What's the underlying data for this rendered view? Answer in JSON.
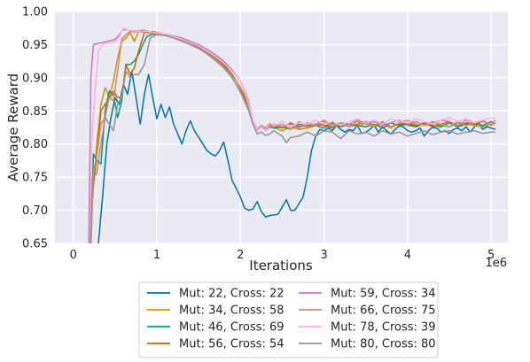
{
  "chart_data": {
    "type": "line",
    "xlabel": "Iterations",
    "ylabel": "Average Reward",
    "x_offset_label": "1e6",
    "xlim": [
      -0.22,
      5.2
    ],
    "ylim": [
      0.65,
      1.0
    ],
    "x_ticks": [
      0,
      1,
      2,
      3,
      4,
      5
    ],
    "y_ticks": [
      0.65,
      0.7,
      0.75,
      0.8,
      0.85,
      0.9,
      0.95,
      1.0
    ],
    "x_tick_labels": [
      "0",
      "1",
      "2",
      "3",
      "4",
      "5"
    ],
    "y_tick_labels": [
      "0.65",
      "0.70",
      "0.75",
      "0.80",
      "0.85",
      "0.90",
      "0.95",
      "1.00"
    ],
    "grid": true,
    "legend_position": "bottom-outside",
    "series": [
      {
        "name": "Mut: 22, Cross: 22",
        "color": "#0173b2",
        "x": [
          0.27,
          0.3,
          0.35,
          0.4,
          0.45,
          0.5,
          0.55,
          0.6,
          0.65,
          0.7,
          0.75,
          0.8,
          0.85,
          0.9,
          0.95,
          1.0,
          1.05,
          1.1,
          1.15,
          1.2,
          1.25,
          1.3,
          1.35,
          1.4,
          1.45,
          1.5,
          1.55,
          1.6,
          1.65,
          1.7,
          1.75,
          1.8,
          1.85,
          1.9,
          1.95,
          2.0,
          2.05,
          2.1,
          2.15,
          2.2,
          2.25,
          2.3,
          2.35,
          2.4,
          2.45,
          2.5,
          2.55,
          2.6,
          2.65,
          2.7,
          2.75,
          2.8,
          2.85,
          2.9,
          2.95,
          3.0,
          3.05,
          3.1,
          3.15,
          3.2,
          3.25,
          3.3,
          3.35,
          3.4,
          3.45,
          3.5,
          3.55,
          3.6,
          3.65,
          3.7,
          3.75,
          3.8,
          3.85,
          3.9,
          3.95,
          4.0,
          4.05,
          4.1,
          4.15,
          4.2,
          4.25,
          4.3,
          4.35,
          4.4,
          4.45,
          4.5,
          4.55,
          4.6,
          4.65,
          4.7,
          4.75,
          4.8,
          4.85,
          4.9,
          4.95,
          5.0,
          5.05
        ],
        "values": [
          0.6,
          0.65,
          0.72,
          0.8,
          0.84,
          0.87,
          0.86,
          0.89,
          0.875,
          0.91,
          0.87,
          0.83,
          0.875,
          0.905,
          0.87,
          0.838,
          0.86,
          0.84,
          0.856,
          0.83,
          0.815,
          0.8,
          0.82,
          0.835,
          0.82,
          0.81,
          0.8,
          0.79,
          0.785,
          0.782,
          0.79,
          0.803,
          0.775,
          0.745,
          0.733,
          0.72,
          0.703,
          0.7,
          0.702,
          0.713,
          0.698,
          0.69,
          0.692,
          0.693,
          0.694,
          0.705,
          0.716,
          0.7,
          0.7,
          0.71,
          0.72,
          0.75,
          0.79,
          0.812,
          0.822,
          0.82,
          0.824,
          0.82,
          0.828,
          0.822,
          0.818,
          0.822,
          0.82,
          0.828,
          0.816,
          0.818,
          0.822,
          0.828,
          0.818,
          0.826,
          0.82,
          0.815,
          0.822,
          0.827,
          0.826,
          0.82,
          0.818,
          0.82,
          0.824,
          0.812,
          0.82,
          0.825,
          0.824,
          0.818,
          0.82,
          0.816,
          0.822,
          0.824,
          0.82,
          0.826,
          0.818,
          0.826,
          0.832,
          0.822,
          0.826,
          0.824,
          0.822
        ]
      },
      {
        "name": "Mut: 34, Cross: 58",
        "color": "#de8f05",
        "x": [
          0.18,
          0.22,
          0.28,
          0.33,
          0.38,
          0.43,
          0.48,
          0.53,
          0.58,
          0.63,
          0.68,
          0.73,
          0.78,
          0.83,
          0.9,
          1.0,
          1.1,
          1.2,
          1.3,
          1.4,
          1.5,
          1.6,
          1.7,
          1.8,
          1.9,
          2.0,
          2.1,
          2.15,
          2.2,
          2.25,
          2.3,
          2.35,
          2.4,
          2.5,
          2.6,
          2.7,
          2.8,
          2.9,
          3.0,
          3.1,
          3.2,
          3.3,
          3.4,
          3.5,
          3.6,
          3.7,
          3.8,
          3.9,
          4.0,
          4.1,
          4.2,
          4.3,
          4.4,
          4.5,
          4.6,
          4.7,
          4.8,
          4.9,
          5.0,
          5.05
        ],
        "values": [
          0.6,
          0.7,
          0.8,
          0.86,
          0.885,
          0.87,
          0.895,
          0.93,
          0.955,
          0.96,
          0.968,
          0.955,
          0.97,
          0.972,
          0.97,
          0.968,
          0.966,
          0.963,
          0.958,
          0.953,
          0.947,
          0.94,
          0.93,
          0.92,
          0.905,
          0.885,
          0.855,
          0.83,
          0.82,
          0.826,
          0.823,
          0.828,
          0.825,
          0.82,
          0.826,
          0.822,
          0.824,
          0.828,
          0.83,
          0.826,
          0.828,
          0.83,
          0.826,
          0.832,
          0.826,
          0.83,
          0.824,
          0.832,
          0.828,
          0.826,
          0.83,
          0.832,
          0.828,
          0.826,
          0.832,
          0.83,
          0.828,
          0.826,
          0.83,
          0.832
        ]
      },
      {
        "name": "Mut: 46, Cross: 69",
        "color": "#029e73",
        "x": [
          0.2,
          0.24,
          0.28,
          0.33,
          0.38,
          0.43,
          0.48,
          0.53,
          0.58,
          0.63,
          0.68,
          0.73,
          0.78,
          0.83,
          0.88,
          0.93,
          0.98,
          1.05,
          1.1,
          1.2,
          1.3,
          1.4,
          1.5,
          1.6,
          1.7,
          1.8,
          1.9,
          2.0,
          2.1,
          2.15,
          2.2,
          2.25,
          2.3,
          2.35,
          2.4,
          2.5,
          2.6,
          2.7,
          2.8,
          2.9,
          3.0,
          3.1,
          3.2,
          3.3,
          3.4,
          3.5,
          3.6,
          3.7,
          3.8,
          3.9,
          4.0,
          4.1,
          4.2,
          4.3,
          4.4,
          4.5,
          4.6,
          4.7,
          4.8,
          4.9,
          5.0,
          5.05
        ],
        "values": [
          0.6,
          0.785,
          0.775,
          0.77,
          0.85,
          0.88,
          0.875,
          0.84,
          0.865,
          0.92,
          0.92,
          0.925,
          0.935,
          0.95,
          0.962,
          0.965,
          0.966,
          0.965,
          0.964,
          0.962,
          0.958,
          0.953,
          0.947,
          0.94,
          0.93,
          0.92,
          0.905,
          0.885,
          0.855,
          0.83,
          0.82,
          0.828,
          0.822,
          0.826,
          0.824,
          0.826,
          0.822,
          0.83,
          0.826,
          0.828,
          0.824,
          0.832,
          0.826,
          0.83,
          0.828,
          0.826,
          0.83,
          0.824,
          0.832,
          0.828,
          0.83,
          0.826,
          0.832,
          0.828,
          0.826,
          0.832,
          0.826,
          0.83,
          0.832,
          0.828,
          0.834,
          0.83
        ]
      },
      {
        "name": "Mut: 56, Cross: 54",
        "color": "#d55e00",
        "x": [
          0.19,
          0.23,
          0.28,
          0.33,
          0.38,
          0.43,
          0.48,
          0.53,
          0.58,
          0.63,
          0.68,
          0.73,
          0.78,
          0.85,
          0.95,
          1.05,
          1.15,
          1.25,
          1.35,
          1.45,
          1.55,
          1.65,
          1.75,
          1.85,
          1.95,
          2.05,
          2.1,
          2.15,
          2.2,
          2.25,
          2.3,
          2.35,
          2.4,
          2.5,
          2.6,
          2.7,
          2.8,
          2.9,
          3.0,
          3.1,
          3.2,
          3.3,
          3.4,
          3.5,
          3.6,
          3.7,
          3.8,
          3.9,
          4.0,
          4.1,
          4.2,
          4.3,
          4.4,
          4.5,
          4.6,
          4.7,
          4.8,
          4.9,
          5.0,
          5.05
        ],
        "values": [
          0.6,
          0.73,
          0.78,
          0.85,
          0.86,
          0.868,
          0.88,
          0.87,
          0.87,
          0.92,
          0.905,
          0.915,
          0.94,
          0.968,
          0.97,
          0.967,
          0.964,
          0.96,
          0.955,
          0.95,
          0.943,
          0.935,
          0.925,
          0.912,
          0.895,
          0.87,
          0.855,
          0.83,
          0.822,
          0.826,
          0.822,
          0.83,
          0.828,
          0.824,
          0.832,
          0.826,
          0.828,
          0.83,
          0.828,
          0.824,
          0.832,
          0.826,
          0.83,
          0.834,
          0.828,
          0.832,
          0.826,
          0.83,
          0.832,
          0.828,
          0.832,
          0.826,
          0.83,
          0.834,
          0.828,
          0.832,
          0.83,
          0.834,
          0.83,
          0.832
        ]
      },
      {
        "name": "Mut: 59, Cross: 34",
        "color": "#cc78bc",
        "x": [
          0.18,
          0.21,
          0.24,
          0.3,
          0.35,
          0.4,
          0.45,
          0.5,
          0.55,
          0.6,
          0.65,
          0.7,
          0.8,
          0.9,
          1.0,
          1.1,
          1.2,
          1.3,
          1.4,
          1.5,
          1.6,
          1.7,
          1.8,
          1.9,
          2.0,
          2.1,
          2.15,
          2.2,
          2.25,
          2.3,
          2.35,
          2.4,
          2.5,
          2.6,
          2.7,
          2.8,
          2.9,
          3.0,
          3.1,
          3.2,
          3.3,
          3.4,
          3.5,
          3.6,
          3.7,
          3.8,
          3.9,
          4.0,
          4.1,
          4.2,
          4.3,
          4.4,
          4.5,
          4.6,
          4.7,
          4.8,
          4.9,
          5.0,
          5.05
        ],
        "values": [
          0.6,
          0.9,
          0.95,
          0.952,
          0.953,
          0.955,
          0.956,
          0.958,
          0.965,
          0.973,
          0.972,
          0.971,
          0.971,
          0.97,
          0.968,
          0.966,
          0.963,
          0.96,
          0.955,
          0.95,
          0.943,
          0.935,
          0.925,
          0.912,
          0.895,
          0.865,
          0.835,
          0.822,
          0.828,
          0.82,
          0.826,
          0.83,
          0.826,
          0.83,
          0.824,
          0.832,
          0.828,
          0.834,
          0.826,
          0.832,
          0.83,
          0.836,
          0.83,
          0.834,
          0.828,
          0.832,
          0.836,
          0.83,
          0.834,
          0.828,
          0.832,
          0.836,
          0.834,
          0.828,
          0.836,
          0.832,
          0.834,
          0.83,
          0.836
        ]
      },
      {
        "name": "Mut: 66, Cross: 75",
        "color": "#ca9161",
        "x": [
          0.2,
          0.24,
          0.28,
          0.33,
          0.38,
          0.43,
          0.48,
          0.53,
          0.58,
          0.63,
          0.68,
          0.73,
          0.78,
          0.85,
          0.95,
          1.05,
          1.15,
          1.25,
          1.35,
          1.45,
          1.55,
          1.65,
          1.75,
          1.85,
          1.95,
          2.05,
          2.1,
          2.15,
          2.2,
          2.25,
          2.3,
          2.35,
          2.4,
          2.5,
          2.6,
          2.7,
          2.8,
          2.9,
          3.0,
          3.1,
          3.2,
          3.3,
          3.4,
          3.5,
          3.6,
          3.7,
          3.8,
          3.9,
          4.0,
          4.1,
          4.2,
          4.3,
          4.4,
          4.5,
          4.6,
          4.7,
          4.8,
          4.9,
          5.0,
          5.05
        ],
        "values": [
          0.6,
          0.76,
          0.78,
          0.83,
          0.84,
          0.87,
          0.865,
          0.91,
          0.958,
          0.965,
          0.97,
          0.969,
          0.97,
          0.968,
          0.967,
          0.965,
          0.962,
          0.958,
          0.954,
          0.948,
          0.941,
          0.932,
          0.922,
          0.91,
          0.895,
          0.875,
          0.855,
          0.83,
          0.822,
          0.828,
          0.824,
          0.832,
          0.826,
          0.83,
          0.822,
          0.834,
          0.826,
          0.83,
          0.836,
          0.828,
          0.832,
          0.826,
          0.834,
          0.83,
          0.828,
          0.834,
          0.826,
          0.832,
          0.836,
          0.83,
          0.828,
          0.834,
          0.83,
          0.826,
          0.834,
          0.828,
          0.832,
          0.836,
          0.828,
          0.832
        ]
      },
      {
        "name": "Mut: 78, Cross: 39",
        "color": "#fbafe4",
        "x": [
          0.19,
          0.22,
          0.26,
          0.3,
          0.35,
          0.4,
          0.45,
          0.5,
          0.55,
          0.6,
          0.65,
          0.7,
          0.8,
          0.9,
          1.0,
          1.1,
          1.2,
          1.3,
          1.4,
          1.5,
          1.6,
          1.7,
          1.8,
          1.9,
          2.0,
          2.1,
          2.15,
          2.2,
          2.25,
          2.3,
          2.35,
          2.4,
          2.5,
          2.6,
          2.7,
          2.8,
          2.9,
          3.0,
          3.1,
          3.2,
          3.3,
          3.4,
          3.5,
          3.6,
          3.7,
          3.8,
          3.9,
          4.0,
          4.1,
          4.2,
          4.3,
          4.4,
          4.5,
          4.6,
          4.7,
          4.8,
          4.9,
          5.0,
          5.05
        ],
        "values": [
          0.6,
          0.8,
          0.88,
          0.94,
          0.95,
          0.952,
          0.953,
          0.955,
          0.962,
          0.975,
          0.972,
          0.971,
          0.97,
          0.97,
          0.968,
          0.966,
          0.962,
          0.958,
          0.953,
          0.948,
          0.94,
          0.932,
          0.922,
          0.91,
          0.895,
          0.862,
          0.835,
          0.82,
          0.826,
          0.82,
          0.832,
          0.828,
          0.834,
          0.826,
          0.832,
          0.83,
          0.836,
          0.83,
          0.834,
          0.828,
          0.834,
          0.838,
          0.832,
          0.836,
          0.83,
          0.838,
          0.834,
          0.832,
          0.838,
          0.834,
          0.83,
          0.836,
          0.84,
          0.834,
          0.838,
          0.832,
          0.836,
          0.84,
          0.838
        ]
      },
      {
        "name": "Mut: 80, Cross: 80",
        "color": "#949494",
        "x": [
          0.19,
          0.23,
          0.28,
          0.33,
          0.38,
          0.43,
          0.48,
          0.53,
          0.58,
          0.63,
          0.68,
          0.73,
          0.78,
          0.85,
          0.92,
          1.0,
          1.1,
          1.2,
          1.3,
          1.4,
          1.5,
          1.6,
          1.7,
          1.8,
          1.9,
          2.0,
          2.1,
          2.15,
          2.2,
          2.25,
          2.3,
          2.35,
          2.4,
          2.5,
          2.55,
          2.6,
          2.7,
          2.8,
          2.9,
          3.0,
          3.1,
          3.2,
          3.3,
          3.4,
          3.5,
          3.6,
          3.7,
          3.8,
          3.9,
          4.0,
          4.1,
          4.2,
          4.3,
          4.4,
          4.5,
          4.6,
          4.7,
          4.8,
          4.9,
          5.0,
          5.05
        ],
        "values": [
          0.6,
          0.75,
          0.755,
          0.8,
          0.84,
          0.83,
          0.82,
          0.86,
          0.87,
          0.91,
          0.9,
          0.905,
          0.905,
          0.92,
          0.96,
          0.965,
          0.964,
          0.96,
          0.955,
          0.95,
          0.944,
          0.936,
          0.926,
          0.915,
          0.9,
          0.878,
          0.85,
          0.83,
          0.815,
          0.818,
          0.813,
          0.815,
          0.82,
          0.812,
          0.802,
          0.81,
          0.812,
          0.818,
          0.812,
          0.82,
          0.818,
          0.808,
          0.82,
          0.815,
          0.818,
          0.812,
          0.82,
          0.815,
          0.818,
          0.812,
          0.816,
          0.82,
          0.814,
          0.818,
          0.82,
          0.815,
          0.818,
          0.82,
          0.816,
          0.818,
          0.818
        ]
      }
    ]
  }
}
